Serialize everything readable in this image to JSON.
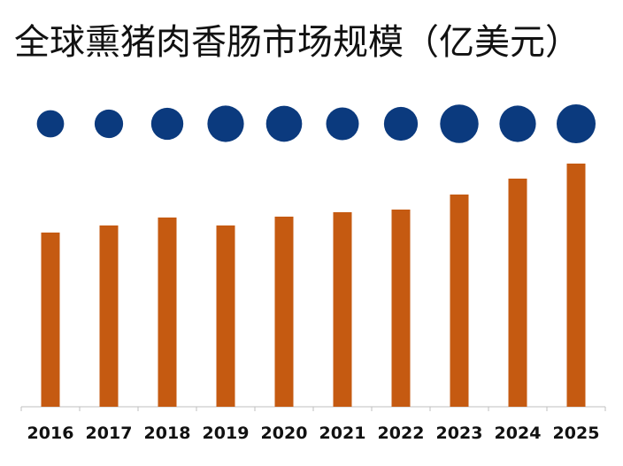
{
  "title": "全球熏猪肉香肠市场规模（亿美元）",
  "colors": {
    "bar": "#C55A11",
    "bubble": "#0B3A7E",
    "axis": "#BFBFBF",
    "text": "#111111"
  },
  "chart_data": {
    "type": "bar",
    "title": "全球熏猪肉香肠市场规模（亿美元）",
    "categories": [
      "2016",
      "2017",
      "2018",
      "2019",
      "2020",
      "2021",
      "2022",
      "2023",
      "2024",
      "2025"
    ],
    "series": [
      {
        "values": [
          197,
          205,
          214,
          205,
          215,
          220,
          223,
          240,
          258,
          275
        ]
      },
      {
        "values": [
          1.0,
          1.1,
          1.4,
          1.8,
          1.75,
          1.45,
          1.55,
          2.0,
          1.8,
          2.05
        ]
      }
    ],
    "ylim": [
      0,
      290
    ],
    "xlabel": "",
    "ylabel": "",
    "grid": false,
    "legend": "none"
  }
}
